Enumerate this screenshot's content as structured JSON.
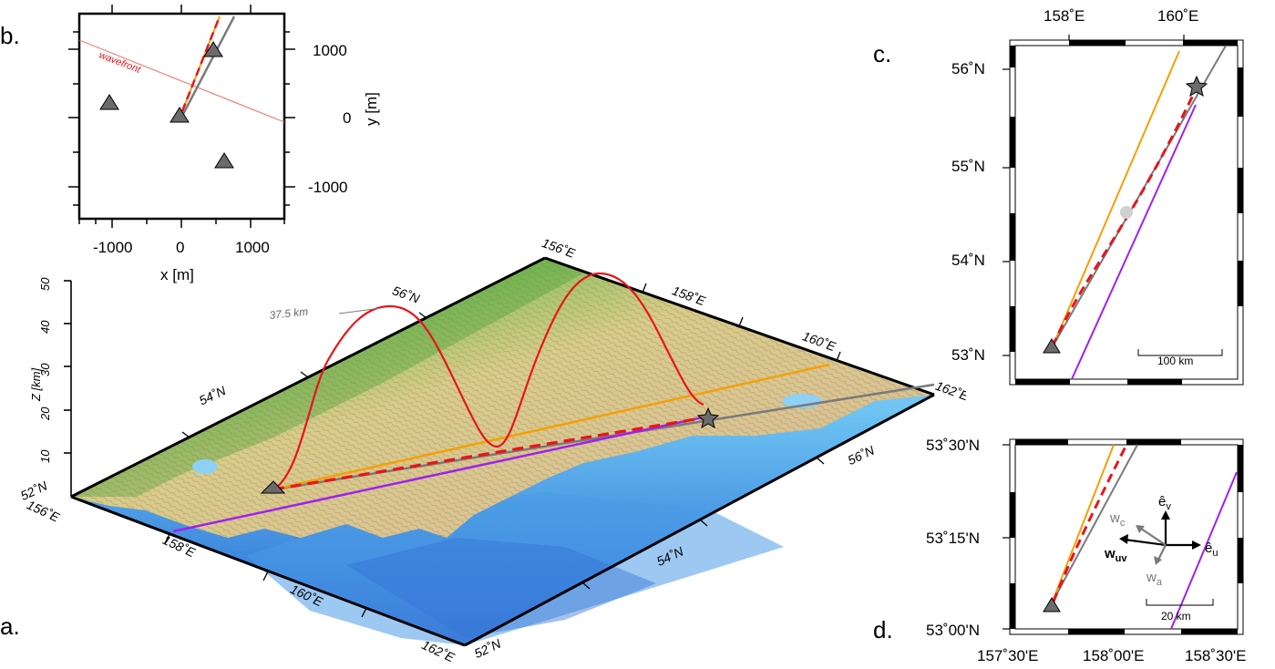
{
  "panels": {
    "a": {
      "letter": "a."
    },
    "b": {
      "letter": "b."
    },
    "c": {
      "letter": "c."
    },
    "d": {
      "letter": "d."
    }
  },
  "panel_b": {
    "x_label": "x [m]",
    "y_label": "y [m]",
    "x_ticks": [
      "-1000",
      "0",
      "1000"
    ],
    "y_ticks": [
      "1000",
      "0",
      "-1000"
    ],
    "wavefront_label": "wavefront",
    "stations": [
      {
        "x": 450,
        "y": 1000
      },
      {
        "x": -1050,
        "y": 230
      },
      {
        "x": 0,
        "y": 0
      },
      {
        "x": 650,
        "y": -650
      }
    ]
  },
  "panel_a": {
    "z_label": "Z [km]",
    "z_ticks": [
      "50",
      "40",
      "30",
      "20",
      "10"
    ],
    "corner_labels": {
      "left_lat": "52˚N",
      "left_lon": "156˚E",
      "top_lon": "156˚E",
      "right_lon": "162˚E",
      "bottom_lon": "162˚E",
      "bottom_lat": "52˚N"
    },
    "top_edge_labels": [
      "56˚N",
      "158˚E",
      "160˚E"
    ],
    "left_edge_labels": [
      "54˚N"
    ],
    "front_edge_labels": [
      "158˚E",
      "160˚E"
    ],
    "right_edge_labels": [
      "56˚N",
      "54˚N"
    ],
    "peak_annotation": "37.5 km"
  },
  "panel_c": {
    "lon_ticks": [
      "158˚E",
      "160˚E"
    ],
    "lat_ticks": [
      "56˚N",
      "55˚N",
      "54˚N",
      "53˚N"
    ],
    "scale_label": "100 km"
  },
  "panel_d": {
    "lon_ticks": [
      "157˚30'E",
      "158˚00'E",
      "158˚30'E"
    ],
    "lat_ticks": [
      "53˚30'N",
      "53˚15'N",
      "53˚00'N"
    ],
    "scale_label": "20 km",
    "vectors": {
      "ev": "ê",
      "ev_sub": "v",
      "eu": "ê",
      "eu_sub": "u",
      "wc": "w",
      "wc_sub": "c",
      "wuv": "w",
      "wuv_sub": "uv",
      "wa": "w",
      "wa_sub": "a"
    }
  },
  "colors": {
    "great_circle": "#7a7a7a",
    "orange_line": "#f5a000",
    "purple_line": "#a020f0",
    "red_dashed": "#e8141c",
    "station_fill": "#6b6b6b",
    "wavefront": "#f08080"
  }
}
